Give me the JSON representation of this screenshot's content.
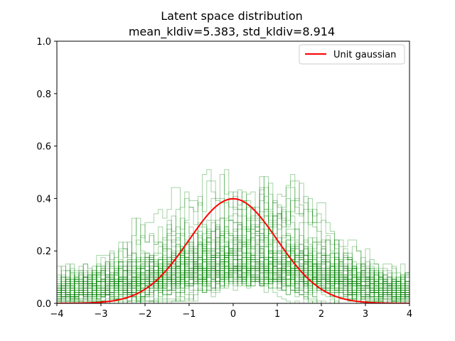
{
  "chart_data": {
    "type": "line",
    "title": "Latent space distribution",
    "subtitle": "mean_kldiv=5.383, std_kldiv=8.914",
    "xlabel": "",
    "ylabel": "",
    "xlim": [
      -4,
      4
    ],
    "ylim": [
      0,
      1
    ],
    "x_ticks": [
      -4,
      -3,
      -2,
      -1,
      0,
      1,
      2,
      3,
      4
    ],
    "x_tick_labels": [
      "−4",
      "−3",
      "−2",
      "−1",
      "0",
      "1",
      "2",
      "3",
      "4"
    ],
    "y_ticks": [
      0.0,
      0.2,
      0.4,
      0.6,
      0.8,
      1.0
    ],
    "y_tick_labels": [
      "0.0",
      "0.2",
      "0.4",
      "0.6",
      "0.8",
      "1.0"
    ],
    "grid": false,
    "legend": {
      "position": "top-right",
      "entries": [
        {
          "label": "Unit gaussian",
          "color": "#ff0000"
        }
      ]
    },
    "colors": {
      "histograms": "#008000",
      "gaussian": "#ff0000"
    },
    "series": [
      {
        "name": "Unit gaussian",
        "x": [
          -4,
          -3.5,
          -3,
          -2.5,
          -2,
          -1.5,
          -1,
          -0.5,
          0,
          0.5,
          1,
          1.5,
          2,
          2.5,
          3,
          3.5,
          4
        ],
        "y": [
          0.0001,
          0.0009,
          0.0044,
          0.0175,
          0.054,
          0.1295,
          0.242,
          0.3521,
          0.3989,
          0.3521,
          0.242,
          0.1295,
          0.054,
          0.0175,
          0.0044,
          0.0009,
          0.0001
        ]
      }
    ],
    "histogram_overlay": {
      "description": "many overlapping step histograms of latent dimensions",
      "count_estimate": 64,
      "max_density_approx": 0.51
    }
  }
}
